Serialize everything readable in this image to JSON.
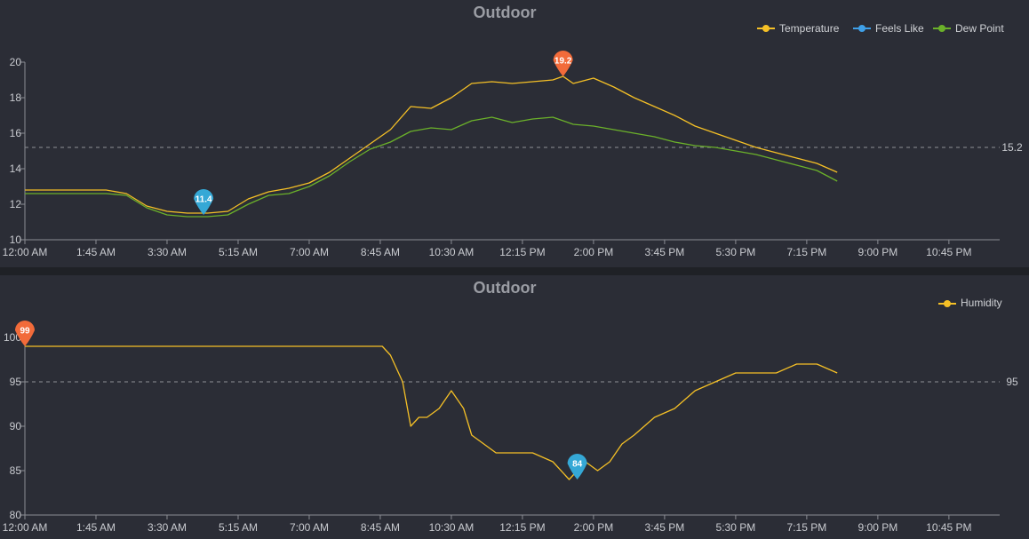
{
  "chart_data": [
    {
      "type": "line",
      "title": "Outdoor",
      "x_categories": [
        "12:00 AM",
        "1:45 AM",
        "3:30 AM",
        "5:15 AM",
        "7:00 AM",
        "8:45 AM",
        "10:30 AM",
        "12:15 PM",
        "2:00 PM",
        "3:45 PM",
        "5:30 PM",
        "7:15 PM",
        "9:00 PM",
        "10:45 PM"
      ],
      "x_range_hours": [
        0,
        24
      ],
      "ylim": [
        10,
        20
      ],
      "yticks": [
        10,
        12,
        14,
        16,
        18,
        20
      ],
      "grid": false,
      "legend_position": "top-right",
      "legend": [
        "Temperature",
        "Feels Like",
        "Dew Point"
      ],
      "colors": {
        "Temperature": "#f5c026",
        "Feels Like": "#3fa0e8",
        "Dew Point": "#6bb12a"
      },
      "series": [
        {
          "name": "Temperature",
          "x_hours": [
            0,
            1,
            2,
            2.5,
            3,
            3.5,
            4,
            4.5,
            5,
            5.5,
            6,
            6.5,
            7,
            7.5,
            8,
            8.5,
            9,
            9.5,
            10,
            10.5,
            11,
            11.5,
            12,
            12.5,
            13,
            13.25,
            13.5,
            14,
            14.5,
            15,
            15.5,
            16,
            16.5,
            17,
            17.5,
            18,
            18.5,
            19,
            19.5,
            20
          ],
          "values": [
            12.8,
            12.8,
            12.8,
            12.6,
            11.9,
            11.6,
            11.5,
            11.5,
            11.6,
            12.3,
            12.7,
            12.9,
            13.2,
            13.8,
            14.6,
            15.4,
            16.2,
            17.5,
            17.4,
            18.0,
            18.8,
            18.9,
            18.8,
            18.9,
            19.0,
            19.2,
            18.8,
            19.1,
            18.6,
            18.0,
            17.5,
            17.0,
            16.4,
            16.0,
            15.6,
            15.2,
            14.9,
            14.6,
            14.3,
            13.8
          ]
        },
        {
          "name": "Dew Point",
          "x_hours": [
            0,
            1,
            2,
            2.5,
            3,
            3.5,
            4,
            4.5,
            5,
            5.5,
            6,
            6.5,
            7,
            7.5,
            8,
            8.5,
            9,
            9.5,
            10,
            10.5,
            11,
            11.5,
            12,
            12.5,
            13,
            13.5,
            14,
            14.5,
            15,
            15.5,
            16,
            16.5,
            17,
            17.5,
            18,
            18.5,
            19,
            19.5,
            20
          ],
          "values": [
            12.6,
            12.6,
            12.6,
            12.5,
            11.8,
            11.4,
            11.3,
            11.3,
            11.4,
            12.0,
            12.5,
            12.6,
            13.0,
            13.6,
            14.4,
            15.1,
            15.5,
            16.1,
            16.3,
            16.2,
            16.7,
            16.9,
            16.6,
            16.8,
            16.9,
            16.5,
            16.4,
            16.2,
            16.0,
            15.8,
            15.5,
            15.3,
            15.2,
            15.0,
            14.8,
            14.5,
            14.2,
            13.9,
            13.3
          ]
        }
      ],
      "reference_line": {
        "label": "15.2",
        "value": 15.2
      },
      "markers": [
        {
          "label": "19.2",
          "x_hours": 13.25,
          "value": 19.2,
          "color": "#f26b3a"
        },
        {
          "label": "11.4",
          "x_hours": 4.4,
          "value": 11.4,
          "color": "#35a8d6"
        }
      ]
    },
    {
      "type": "line",
      "title": "Outdoor",
      "x_categories": [
        "12:00 AM",
        "1:45 AM",
        "3:30 AM",
        "5:15 AM",
        "7:00 AM",
        "8:45 AM",
        "10:30 AM",
        "12:15 PM",
        "2:00 PM",
        "3:45 PM",
        "5:30 PM",
        "7:15 PM",
        "9:00 PM",
        "10:45 PM"
      ],
      "x_range_hours": [
        0,
        24
      ],
      "ylim": [
        80,
        100
      ],
      "yticks": [
        80,
        85,
        90,
        95,
        100
      ],
      "grid": false,
      "legend_position": "top-right",
      "legend": [
        "Humidity"
      ],
      "colors": {
        "Humidity": "#f5c026"
      },
      "series": [
        {
          "name": "Humidity",
          "x_hours": [
            0,
            8.8,
            9.0,
            9.3,
            9.5,
            9.7,
            9.9,
            10.2,
            10.5,
            10.8,
            11.0,
            11.3,
            11.6,
            12.0,
            12.5,
            13.0,
            13.4,
            13.8,
            14.1,
            14.4,
            14.7,
            15.0,
            15.5,
            16.0,
            16.5,
            17.0,
            17.5,
            18.0,
            18.5,
            19.0,
            19.5,
            20
          ],
          "values": [
            99,
            99,
            98,
            95,
            90,
            91,
            91,
            92,
            94,
            92,
            89,
            88,
            87,
            87,
            87,
            86,
            84,
            86,
            85,
            86,
            88,
            89,
            91,
            92,
            94,
            95,
            96,
            96,
            96,
            97,
            97,
            96
          ]
        }
      ],
      "reference_line": {
        "label": "95",
        "value": 95
      },
      "markers": [
        {
          "label": "99",
          "x_hours": 0,
          "value": 99,
          "color": "#f26b3a"
        },
        {
          "label": "84",
          "x_hours": 13.6,
          "value": 84,
          "color": "#35a8d6"
        }
      ]
    }
  ]
}
